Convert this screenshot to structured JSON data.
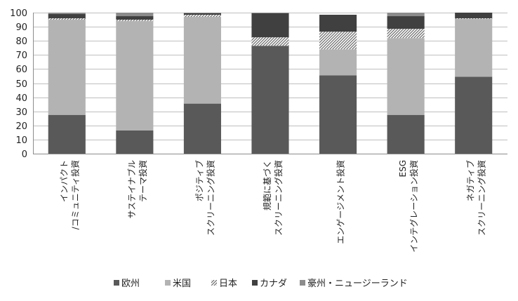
{
  "chart_data": {
    "type": "bar",
    "stacked": true,
    "categories": [
      [
        "インパクト",
        "/コミュニティ投資"
      ],
      [
        "サステイナブル",
        "テーマ投資"
      ],
      [
        "ポジティブ",
        "スクリーニング投資"
      ],
      [
        "規範に基づく",
        "スクリーニング投資"
      ],
      [
        "エンゲージメント投資"
      ],
      [
        "ESG",
        "インテグレーション投資"
      ],
      [
        "ネガティブ",
        "スクリーニング投資"
      ]
    ],
    "series": [
      {
        "name": "欧州",
        "color": "#595959",
        "pattern": "solid",
        "values": [
          27.5,
          16.5,
          35.5,
          76.5,
          55.5,
          27.5,
          54.5
        ]
      },
      {
        "name": "米国",
        "color": "#b3b3b3",
        "pattern": "solid",
        "values": [
          67.5,
          77.5,
          61.5,
          0,
          18.5,
          54.5,
          41
        ]
      },
      {
        "name": "日本",
        "color": "#7f7f7f",
        "pattern": "hatch",
        "values": [
          1,
          1,
          1.5,
          6,
          12.5,
          6.5,
          0.5
        ]
      },
      {
        "name": "カナダ",
        "color": "#404040",
        "pattern": "solid",
        "values": [
          3,
          2.5,
          1,
          17,
          12,
          9,
          4
        ]
      },
      {
        "name": "豪州・ニュージーランド",
        "color": "#8c8c8c",
        "pattern": "solid",
        "values": [
          1,
          2.5,
          0.5,
          0.5,
          0,
          2.5,
          0
        ]
      }
    ],
    "ylim": [
      0,
      100
    ],
    "yticks": [
      0,
      10,
      20,
      30,
      40,
      50,
      60,
      70,
      80,
      90,
      100
    ],
    "grid": true,
    "legend_position": "bottom"
  }
}
